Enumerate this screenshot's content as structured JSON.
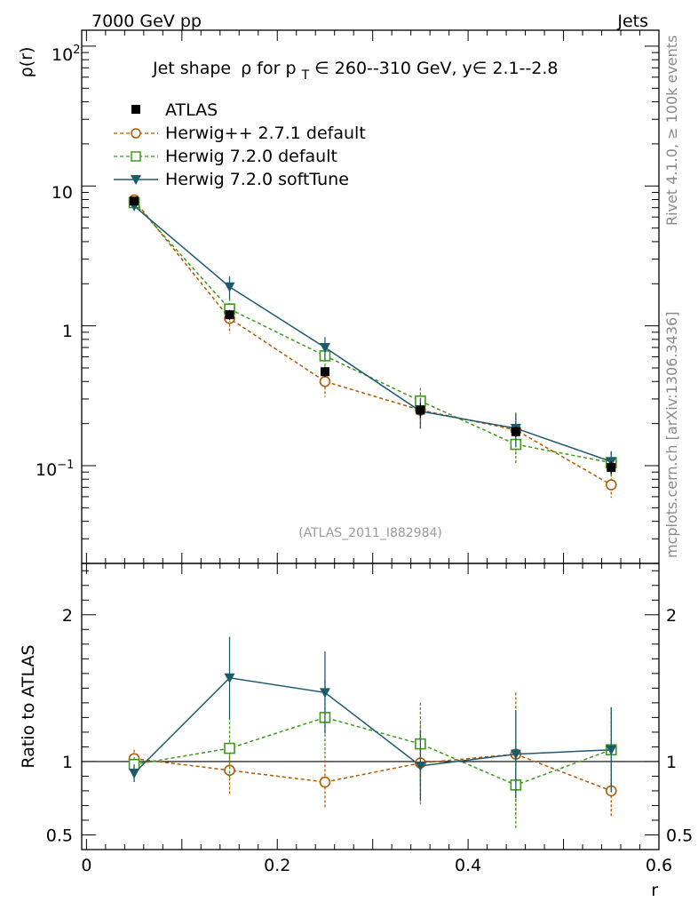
{
  "header": {
    "left": "7000 GeV pp",
    "right": "Jets"
  },
  "watermark": {
    "rivet": "Rivet 4.1.0, ≥ 100k events",
    "mcplots": "mcplots.cern.ch [arXiv:1306.3436]"
  },
  "colors": {
    "atlas": "#000000",
    "herwigpp": "#b35900",
    "herwig720": "#3c9a1a",
    "softtune": "#1c5a6e"
  },
  "chart_data": {
    "type": "line",
    "title_parts": {
      "a": "Jet shape",
      "b": "ρ",
      "c": " for p",
      "sub": "T",
      "d": " ∈ 260--310 GeV, y∈ 2.1--2.8"
    },
    "reference": "(ATLAS_2011_I882984)",
    "xlabel": "r",
    "ylabel": "ρ(r)",
    "ratio_ylabel": "Ratio to ATLAS",
    "xlim": [
      -0.005,
      0.6
    ],
    "ylim_log": [
      0.02,
      130
    ],
    "ratio_ylim": [
      0.4,
      2.35
    ],
    "x_ticks": [
      "0",
      "0.2",
      "0.4",
      "0.6"
    ],
    "x_tick_values": [
      0,
      0.2,
      0.4,
      0.6
    ],
    "y_tick_labels": {
      "e2": "10",
      "e2sup": "2",
      "ten": "10",
      "one": "1",
      "em1": "10",
      "em1sup": "−1"
    },
    "ratio_ticks": [
      "0.5",
      "1",
      "2"
    ],
    "ratio_tick_values": [
      0.5,
      1,
      2
    ],
    "x": [
      0.05,
      0.15,
      0.25,
      0.35,
      0.45,
      0.55
    ],
    "series": [
      {
        "name": "ATLAS",
        "key": "atlas",
        "marker": "square",
        "values": [
          7.8,
          1.2,
          0.47,
          0.25,
          0.175,
          0.097
        ],
        "err": [
          0.4,
          0.1,
          0.04,
          0.03,
          0.015,
          0.01
        ],
        "ratio": [
          1.0,
          1.0,
          1.0,
          1.0,
          1.0,
          1.0
        ]
      },
      {
        "name": "Herwig++ 2.7.1 default",
        "key": "herwigpp",
        "marker": "circle",
        "values": [
          7.95,
          1.13,
          0.4,
          0.25,
          0.18,
          0.073
        ],
        "err": [
          0.6,
          0.25,
          0.09,
          0.07,
          0.06,
          0.014
        ],
        "ratio": [
          1.02,
          0.94,
          0.86,
          0.99,
          1.05,
          0.8
        ],
        "ratio_err": [
          0.06,
          0.16,
          0.18,
          0.28,
          0.42,
          0.18
        ]
      },
      {
        "name": "Herwig 7.2.0 default",
        "key": "herwig720",
        "marker": "open-square",
        "values": [
          7.6,
          1.32,
          0.61,
          0.29,
          0.142,
          0.105
        ],
        "err": [
          0.5,
          0.25,
          0.11,
          0.07,
          0.04,
          0.02
        ],
        "ratio": [
          0.98,
          1.09,
          1.3,
          1.12,
          0.84,
          1.08
        ],
        "ratio_err": [
          0.05,
          0.21,
          0.25,
          0.28,
          0.3,
          0.29
        ]
      },
      {
        "name": "Herwig 7.2.0 softTune",
        "key": "softtune",
        "marker": "triangle-down",
        "values": [
          7.2,
          1.9,
          0.7,
          0.245,
          0.185,
          0.107
        ],
        "err": [
          0.55,
          0.35,
          0.13,
          0.06,
          0.05,
          0.02
        ],
        "ratio": [
          0.92,
          1.57,
          1.47,
          0.97,
          1.05,
          1.08
        ],
        "ratio_err": [
          0.06,
          0.28,
          0.28,
          0.24,
          0.3,
          0.29
        ]
      }
    ]
  }
}
